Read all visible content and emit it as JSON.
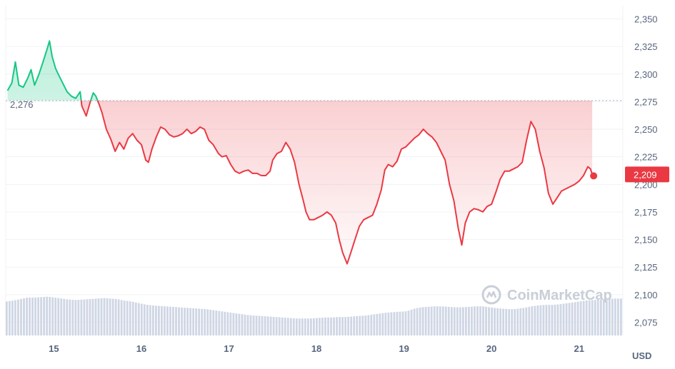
{
  "chart_data": {
    "type": "line",
    "currency": "USD",
    "reference_value": 2276,
    "reference_label": "2,276",
    "current_value": 2209,
    "current_label": "2,209",
    "y_ticks": [
      "2,350",
      "2,325",
      "2,300",
      "2,275",
      "2,250",
      "2,225",
      "2,200",
      "2,175",
      "2,150",
      "2,125",
      "2,100",
      "2,075"
    ],
    "y_tick_values": [
      2350,
      2325,
      2300,
      2275,
      2250,
      2225,
      2200,
      2175,
      2150,
      2125,
      2100,
      2075
    ],
    "ylim": [
      2063,
      2362
    ],
    "x_ticks": [
      "15",
      "16",
      "17",
      "18",
      "19",
      "20",
      "21"
    ],
    "x_tick_values": [
      15,
      16,
      17,
      18,
      19,
      20,
      21
    ],
    "xlim": [
      14.45,
      21.5
    ],
    "grid": true,
    "watermark": "CoinMarketCap",
    "colors": {
      "up": "#16c784",
      "down": "#ea3943",
      "volume": "#cfd6e4",
      "grid": "#eff2f5"
    },
    "series": [
      {
        "values_xy": [
          [
            14.47,
            2285
          ],
          [
            14.52,
            2292
          ],
          [
            14.56,
            2311
          ],
          [
            14.6,
            2290
          ],
          [
            14.65,
            2288
          ],
          [
            14.7,
            2296
          ],
          [
            14.74,
            2304
          ],
          [
            14.78,
            2290
          ],
          [
            14.83,
            2300
          ],
          [
            14.88,
            2312
          ],
          [
            14.92,
            2322
          ],
          [
            14.95,
            2330
          ],
          [
            14.98,
            2316
          ],
          [
            15.02,
            2305
          ],
          [
            15.05,
            2300
          ],
          [
            15.1,
            2292
          ],
          [
            15.15,
            2284
          ],
          [
            15.2,
            2280
          ],
          [
            15.25,
            2278
          ],
          [
            15.3,
            2284
          ],
          [
            15.32,
            2271
          ],
          [
            15.37,
            2262
          ],
          [
            15.42,
            2276
          ],
          [
            15.45,
            2283
          ],
          [
            15.48,
            2280
          ],
          [
            15.52,
            2272
          ],
          [
            15.55,
            2265
          ],
          [
            15.6,
            2250
          ],
          [
            15.65,
            2241
          ],
          [
            15.7,
            2230
          ],
          [
            15.75,
            2238
          ],
          [
            15.8,
            2232
          ],
          [
            15.85,
            2242
          ],
          [
            15.9,
            2246
          ],
          [
            15.95,
            2240
          ],
          [
            16.0,
            2236
          ],
          [
            16.05,
            2222
          ],
          [
            16.08,
            2220
          ],
          [
            16.12,
            2232
          ],
          [
            16.17,
            2243
          ],
          [
            16.22,
            2252
          ],
          [
            16.27,
            2250
          ],
          [
            16.32,
            2245
          ],
          [
            16.37,
            2243
          ],
          [
            16.42,
            2244
          ],
          [
            16.47,
            2246
          ],
          [
            16.52,
            2250
          ],
          [
            16.57,
            2246
          ],
          [
            16.62,
            2248
          ],
          [
            16.67,
            2252
          ],
          [
            16.72,
            2250
          ],
          [
            16.77,
            2240
          ],
          [
            16.82,
            2236
          ],
          [
            16.88,
            2228
          ],
          [
            16.92,
            2225
          ],
          [
            16.97,
            2226
          ],
          [
            17.02,
            2218
          ],
          [
            17.07,
            2212
          ],
          [
            17.12,
            2210
          ],
          [
            17.17,
            2212
          ],
          [
            17.22,
            2213
          ],
          [
            17.27,
            2210
          ],
          [
            17.32,
            2210
          ],
          [
            17.37,
            2208
          ],
          [
            17.42,
            2208
          ],
          [
            17.47,
            2212
          ],
          [
            17.5,
            2222
          ],
          [
            17.55,
            2228
          ],
          [
            17.6,
            2230
          ],
          [
            17.65,
            2238
          ],
          [
            17.7,
            2232
          ],
          [
            17.75,
            2220
          ],
          [
            17.8,
            2200
          ],
          [
            17.85,
            2185
          ],
          [
            17.88,
            2175
          ],
          [
            17.92,
            2168
          ],
          [
            17.97,
            2168
          ],
          [
            18.02,
            2170
          ],
          [
            18.07,
            2172
          ],
          [
            18.12,
            2175
          ],
          [
            18.17,
            2172
          ],
          [
            18.22,
            2165
          ],
          [
            18.26,
            2150
          ],
          [
            18.3,
            2138
          ],
          [
            18.35,
            2128
          ],
          [
            18.4,
            2140
          ],
          [
            18.44,
            2150
          ],
          [
            18.49,
            2162
          ],
          [
            18.54,
            2168
          ],
          [
            18.59,
            2170
          ],
          [
            18.64,
            2172
          ],
          [
            18.69,
            2182
          ],
          [
            18.74,
            2195
          ],
          [
            18.78,
            2213
          ],
          [
            18.82,
            2218
          ],
          [
            18.87,
            2216
          ],
          [
            18.92,
            2221
          ],
          [
            18.97,
            2232
          ],
          [
            19.02,
            2234
          ],
          [
            19.07,
            2238
          ],
          [
            19.12,
            2242
          ],
          [
            19.17,
            2245
          ],
          [
            19.22,
            2250
          ],
          [
            19.27,
            2246
          ],
          [
            19.32,
            2243
          ],
          [
            19.37,
            2238
          ],
          [
            19.42,
            2230
          ],
          [
            19.47,
            2222
          ],
          [
            19.52,
            2200
          ],
          [
            19.57,
            2185
          ],
          [
            19.62,
            2160
          ],
          [
            19.66,
            2145
          ],
          [
            19.7,
            2165
          ],
          [
            19.75,
            2175
          ],
          [
            19.8,
            2178
          ],
          [
            19.85,
            2177
          ],
          [
            19.9,
            2175
          ],
          [
            19.95,
            2180
          ],
          [
            20.0,
            2182
          ],
          [
            20.05,
            2193
          ],
          [
            20.1,
            2205
          ],
          [
            20.15,
            2212
          ],
          [
            20.2,
            2212
          ],
          [
            20.25,
            2214
          ],
          [
            20.3,
            2216
          ],
          [
            20.35,
            2220
          ],
          [
            20.4,
            2240
          ],
          [
            20.45,
            2257
          ],
          [
            20.5,
            2250
          ],
          [
            20.55,
            2230
          ],
          [
            20.6,
            2215
          ],
          [
            20.65,
            2192
          ],
          [
            20.7,
            2182
          ],
          [
            20.75,
            2188
          ],
          [
            20.8,
            2194
          ],
          [
            20.85,
            2196
          ],
          [
            20.9,
            2198
          ],
          [
            20.95,
            2200
          ],
          [
            21.0,
            2203
          ],
          [
            21.05,
            2208
          ],
          [
            21.1,
            2216
          ],
          [
            21.13,
            2214
          ],
          [
            21.15,
            2209
          ]
        ]
      }
    ],
    "volume_levels": [
      0.7,
      0.72,
      0.75,
      0.78,
      0.78,
      0.79,
      0.8,
      0.78,
      0.76,
      0.74,
      0.73,
      0.74,
      0.75,
      0.76,
      0.77,
      0.76,
      0.75,
      0.72,
      0.7,
      0.67,
      0.64,
      0.62,
      0.61,
      0.6,
      0.59,
      0.58,
      0.57,
      0.56,
      0.55,
      0.54,
      0.52,
      0.5,
      0.48,
      0.46,
      0.44,
      0.42,
      0.41,
      0.4,
      0.39,
      0.38,
      0.37,
      0.36,
      0.35,
      0.35,
      0.35,
      0.36,
      0.37,
      0.37,
      0.38,
      0.38,
      0.39,
      0.4,
      0.41,
      0.43,
      0.45,
      0.47,
      0.48,
      0.49,
      0.5,
      0.55,
      0.58,
      0.59,
      0.6,
      0.6,
      0.59,
      0.58,
      0.58,
      0.59,
      0.6,
      0.6,
      0.58,
      0.56,
      0.55,
      0.54,
      0.55,
      0.57,
      0.6,
      0.62,
      0.63,
      0.63,
      0.64,
      0.66,
      0.68,
      0.7,
      0.72,
      0.73,
      0.74,
      0.75,
      0.76,
      0.76
    ]
  }
}
